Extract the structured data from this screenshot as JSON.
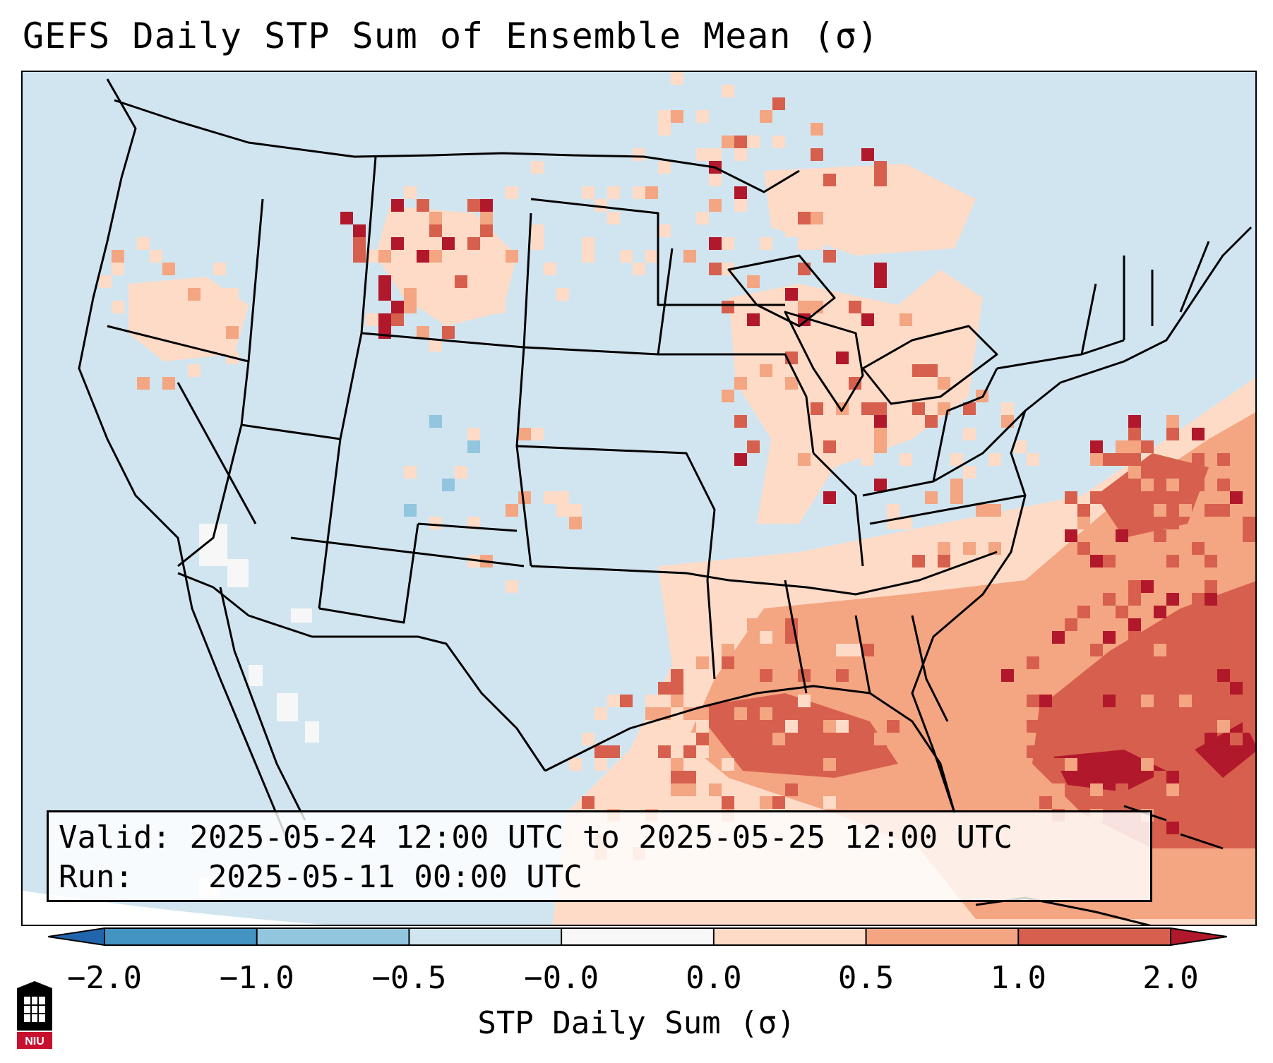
{
  "title": "GEFS Daily STP Sum of Ensemble Mean (σ)",
  "info": {
    "valid_label": "Valid:",
    "valid_value": "2025-05-24 12:00 UTC to 2025-05-25 12:00 UTC",
    "run_label": "Run:",
    "run_value": "2025-05-11 00:00 UTC"
  },
  "colorbar": {
    "label": "STP Daily Sum (σ)",
    "ticks": [
      "−2.0",
      "−1.0",
      "−0.5",
      "−0.0",
      "0.0",
      "0.5",
      "1.0",
      "2.0"
    ],
    "bins": [
      {
        "range": "< -2.0",
        "color": "#2166ac"
      },
      {
        "range": "-2.0 to -1.0",
        "color": "#4393c3"
      },
      {
        "range": "-1.0 to -0.5",
        "color": "#92c5de"
      },
      {
        "range": "-0.5 to -0.0",
        "color": "#d1e5f0"
      },
      {
        "range": "-0.0 to 0.0",
        "color": "#f7f7f7"
      },
      {
        "range": "0.0 to 0.5",
        "color": "#fddbc7"
      },
      {
        "range": "0.5 to 1.0",
        "color": "#f4a582"
      },
      {
        "range": "1.0 to 2.0",
        "color": "#d6604d"
      },
      {
        "range": "> 2.0",
        "color": "#b2182b"
      }
    ]
  },
  "map": {
    "domain": "Contiguous United States",
    "background_color": "#d1e5f0",
    "boundary_color": "#000000"
  },
  "logo": {
    "text": "NIU",
    "color": "#c8102e"
  }
}
